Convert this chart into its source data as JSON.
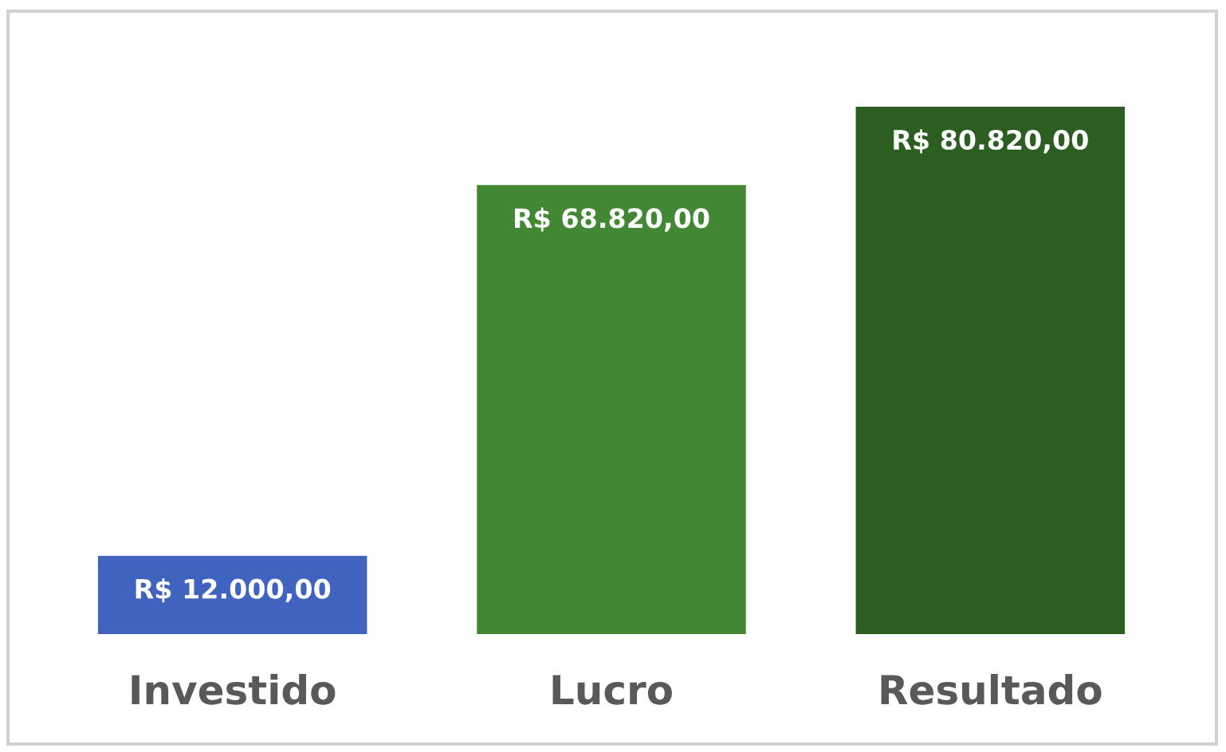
{
  "chart_data": {
    "type": "bar",
    "categories": [
      "Investido",
      "Lucro",
      "Resultado"
    ],
    "values": [
      12000,
      68820,
      80820
    ],
    "colors": [
      "#3f63bf",
      "#428733",
      "#2c5e22"
    ],
    "value_labels": [
      "R$ 12.000,00",
      "R$ 68.820,00",
      "R$ 80.820,00"
    ]
  }
}
